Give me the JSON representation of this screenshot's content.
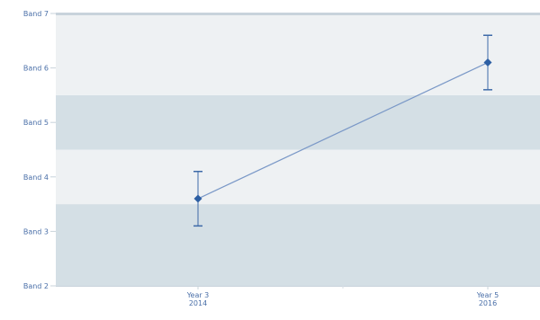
{
  "chart_data": {
    "type": "line",
    "x_categories": [
      {
        "line1": "Year 3",
        "line2": "2014"
      },
      {
        "line1": "Year 5",
        "line2": "2016"
      }
    ],
    "y_ticks": [
      "Band 2",
      "Band 3",
      "Band 4",
      "Band 5",
      "Band 6",
      "Band 7"
    ],
    "ylim": [
      2,
      7
    ],
    "bands": [
      {
        "from": 2,
        "to": 3.5,
        "shade": "dark"
      },
      {
        "from": 3.5,
        "to": 4.5,
        "shade": "light"
      },
      {
        "from": 4.5,
        "to": 5.5,
        "shade": "dark"
      },
      {
        "from": 5.5,
        "to": 7,
        "shade": "light"
      }
    ],
    "series": [
      {
        "points": [
          {
            "x": "Year 3",
            "y": 3.6,
            "error_low": 3.1,
            "error_high": 4.1
          },
          {
            "x": "Year 5",
            "y": 6.1,
            "error_low": 5.6,
            "error_high": 6.6
          }
        ]
      }
    ],
    "colors": {
      "band_light": "#eef1f3",
      "band_dark": "#d4dfe5",
      "line": "#7a98c7",
      "marker": "#2d5fa3",
      "error_bar": "#3e6aa8",
      "tick_text": "#4a6fa8"
    },
    "grid": false,
    "legend": "none"
  }
}
